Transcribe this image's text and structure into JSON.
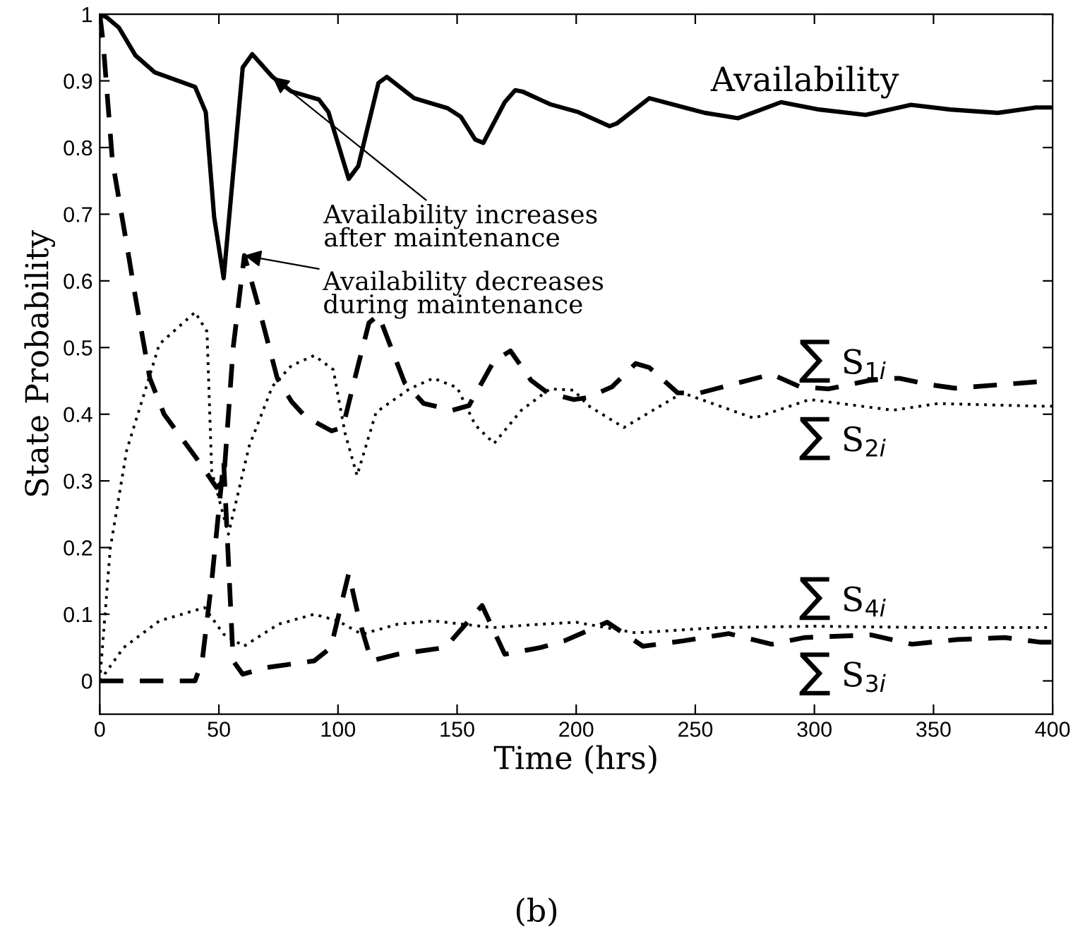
{
  "chart_data": {
    "type": "line",
    "xlabel": "Time (hrs)",
    "ylabel": "State Probability",
    "xlim": [
      0,
      400
    ],
    "ylim": [
      -0.05,
      1
    ],
    "xticks": [
      0,
      50,
      100,
      150,
      200,
      250,
      300,
      350,
      400
    ],
    "yticks": [
      0,
      0.1,
      0.2,
      0.3,
      0.4,
      0.5,
      0.6,
      0.7,
      0.8,
      0.9,
      1
    ],
    "grid": false,
    "marker": "none",
    "series": [
      {
        "name": "Availability",
        "color": "#000000",
        "line_style": "solid",
        "x": [
          0,
          3,
          8,
          15,
          23,
          40,
          44.5,
          48,
          52,
          60,
          64,
          72.5,
          80.5,
          92,
          96,
          104.5,
          108.5,
          117,
          120.5,
          132,
          146,
          151.6,
          157.6,
          161,
          170,
          174.4,
          177.4,
          189,
          201,
          214,
          217,
          230.7,
          246.5,
          254,
          268,
          271,
          286,
          302,
          321.5,
          340.5,
          357,
          377,
          393,
          400
        ],
        "values": [
          1,
          0.995,
          0.98,
          0.938,
          0.913,
          0.891,
          0.853,
          0.696,
          0.604,
          0.92,
          0.94,
          0.906,
          0.884,
          0.872,
          0.853,
          0.753,
          0.772,
          0.897,
          0.906,
          0.874,
          0.859,
          0.846,
          0.812,
          0.807,
          0.868,
          0.886,
          0.884,
          0.865,
          0.853,
          0.832,
          0.836,
          0.874,
          0.859,
          0.852,
          0.844,
          0.848,
          0.868,
          0.857,
          0.849,
          0.864,
          0.857,
          0.852,
          0.86,
          0.86
        ]
      },
      {
        "name": "∑ S$_{1i}$",
        "color": "#000000",
        "line_style": "dashed",
        "x": [
          0,
          1.4,
          5.3,
          12,
          15,
          21,
          27,
          42,
          49,
          52,
          56,
          60.7,
          66.6,
          74.5,
          80.5,
          86.4,
          97.3,
          102,
          108,
          113,
          117,
          128,
          136,
          148,
          155,
          165.5,
          172.4,
          181,
          188,
          199,
          205,
          215,
          225,
          230.7,
          242.6,
          252,
          282,
          294,
          306,
          323.6,
          335.5,
          349,
          359,
          377,
          395,
          400
        ],
        "values": [
          1,
          0.958,
          0.78,
          0.64,
          0.575,
          0.454,
          0.4,
          0.327,
          0.29,
          0.3,
          0.5,
          0.638,
          0.562,
          0.454,
          0.419,
          0.396,
          0.375,
          0.38,
          0.467,
          0.537,
          0.549,
          0.447,
          0.416,
          0.406,
          0.413,
          0.48,
          0.495,
          0.451,
          0.432,
          0.422,
          0.425,
          0.441,
          0.476,
          0.47,
          0.432,
          0.432,
          0.46,
          0.441,
          0.438,
          0.451,
          0.454,
          0.444,
          0.439,
          0.444,
          0.449,
          0.445
        ]
      },
      {
        "name": "∑ S$_{2i}$",
        "color": "#000000",
        "line_style": "dotted",
        "x": [
          0,
          4.4,
          11.3,
          19,
          25,
          40,
          45,
          47,
          54,
          62.7,
          72.5,
          80.5,
          90,
          98,
          103,
          108,
          116,
          130,
          140,
          150,
          157.6,
          165.5,
          177,
          189,
          199,
          205,
          220,
          244.6,
          274.6,
          298,
          333,
          352,
          395,
          400
        ],
        "values": [
          0,
          0.199,
          0.346,
          0.435,
          0.505,
          0.553,
          0.524,
          0.314,
          0.22,
          0.352,
          0.442,
          0.473,
          0.488,
          0.467,
          0.371,
          0.308,
          0.403,
          0.438,
          0.454,
          0.44,
          0.384,
          0.356,
          0.406,
          0.438,
          0.436,
          0.413,
          0.38,
          0.432,
          0.394,
          0.422,
          0.406,
          0.416,
          0.412,
          0.412
        ]
      },
      {
        "name": "∑ S$_{4i}$",
        "color": "#000000",
        "line_style": "dotted",
        "x": [
          0,
          10,
          25,
          44,
          52,
          60.5,
          75,
          90,
          100,
          110,
          125,
          140,
          165,
          185,
          200,
          225,
          260,
          300,
          350,
          400
        ],
        "values": [
          0,
          0.05,
          0.09,
          0.11,
          0.07,
          0.052,
          0.085,
          0.1,
          0.09,
          0.07,
          0.085,
          0.09,
          0.08,
          0.085,
          0.088,
          0.072,
          0.08,
          0.082,
          0.08,
          0.08
        ]
      },
      {
        "name": "∑ S$_{3i}$",
        "color": "#000000",
        "line_style": "dashed",
        "x": [
          0,
          40,
          43,
          47,
          52,
          56,
          60,
          70,
          90,
          97,
          104.5,
          109,
          114,
          125,
          145,
          160.5,
          170,
          185,
          195,
          213,
          228,
          245,
          264,
          282,
          296,
          323.6,
          341,
          360,
          380,
          395,
          400
        ],
        "values": [
          0,
          0,
          0.03,
          0.15,
          0.33,
          0.03,
          0.01,
          0.02,
          0.03,
          0.05,
          0.161,
          0.09,
          0.03,
          0.04,
          0.05,
          0.113,
          0.04,
          0.05,
          0.06,
          0.088,
          0.052,
          0.06,
          0.071,
          0.055,
          0.065,
          0.069,
          0.055,
          0.062,
          0.065,
          0.058,
          0.058
        ]
      }
    ],
    "annotations": [
      {
        "text": "Availability increases\nafter maintenance",
        "x": 72.5,
        "y": 0.906
      },
      {
        "text": "Availability decreases\nduring maintenance",
        "x": 60.7,
        "y": 0.638
      },
      "(b)"
    ]
  }
}
